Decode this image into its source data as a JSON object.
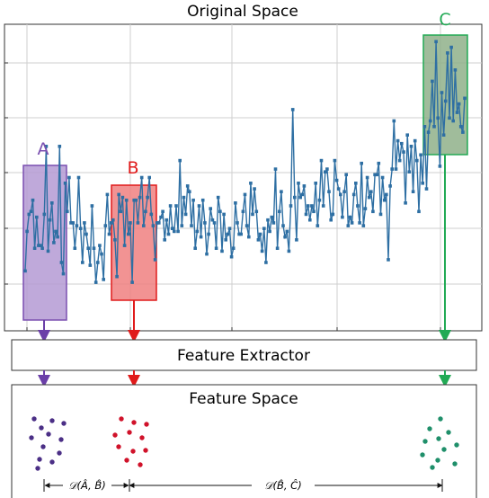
{
  "top_title": "Original Space",
  "labels": {
    "a": "A",
    "b": "B",
    "c": "C"
  },
  "extractor_label": "Feature Extractor",
  "feature_space_title": "Feature Space",
  "distance_ab": "𝒟(Â, B̂)",
  "distance_bc": "𝒟(B̂, Ĉ)",
  "colors": {
    "line": "#2e6fa3",
    "a_fill": "#b49ad4",
    "a_stroke": "#7a4fb0",
    "a_dots": "#4b2f86",
    "b_fill": "#f08080",
    "b_stroke": "#e01b1b",
    "b_dots": "#d0122a",
    "c_fill": "#8fb08a",
    "c_stroke": "#22aa55",
    "c_dots": "#1f8f6a"
  },
  "chart_data": {
    "type": "line",
    "title": "Original Space",
    "xlabel": "",
    "ylabel": "",
    "grid": true,
    "ylim": [
      0,
      10
    ],
    "y": [
      1.7,
      3.1,
      3.7,
      3.8,
      4.2,
      2.5,
      3.6,
      2.6,
      2.6,
      2.5,
      3.7,
      6.1,
      2.4,
      3.5,
      4.1,
      2.7,
      3.1,
      2.9,
      6.1,
      2.0,
      1.6,
      4.8,
      3.8,
      5.0,
      3.4,
      3.4,
      2.5,
      3.3,
      5.0,
      3.2,
      2.0,
      3.4,
      3.0,
      2.5,
      1.9,
      4.0,
      2.5,
      1.3,
      2.0,
      2.6,
      2.3,
      1.4,
      3.3,
      4.4,
      3.0,
      3.4,
      3.5,
      2.8,
      1.5,
      4.4,
      3.8,
      4.3,
      2.6,
      4.2,
      3.0,
      3.4,
      1.3,
      4.2,
      4.2,
      3.4,
      4.3,
      5.0,
      3.3,
      3.8,
      4.3,
      5.0,
      3.7,
      3.3,
      2.1,
      3.4,
      3.4,
      3.6,
      3.8,
      2.8,
      3.5,
      3.0,
      4.0,
      3.2,
      3.1,
      4.0,
      3.1,
      5.6,
      3.3,
      4.3,
      3.7,
      4.7,
      4.5,
      3.3,
      4.2,
      2.5,
      3.1,
      4.0,
      2.9,
      4.2,
      3.4,
      2.3,
      3.0,
      3.9,
      3.5,
      3.4,
      2.5,
      4.3,
      3.8,
      2.4,
      3.7,
      2.8,
      3.0,
      3.2,
      2.2,
      2.5,
      4.1,
      3.4,
      3.0,
      3.0,
      3.8,
      4.4,
      3.3,
      2.9,
      4.8,
      3.7,
      4.6,
      3.8,
      2.8,
      3.0,
      2.4,
      3.2,
      2.0,
      3.5,
      3.1,
      3.6,
      3.4,
      5.3,
      2.5,
      3.8,
      4.5,
      3.3,
      2.9,
      3.1,
      2.4,
      4.0,
      7.4,
      4.3,
      2.8,
      4.8,
      4.3,
      4.4,
      4.7,
      3.7,
      4.0,
      3.5,
      4.0,
      3.8,
      4.8,
      3.3,
      4.2,
      5.6,
      4.0,
      5.2,
      5.3,
      4.5,
      3.5,
      3.7,
      5.6,
      4.9,
      4.6,
      4.4,
      3.6,
      4.5,
      5.1,
      3.3,
      3.6,
      3.4,
      4.4,
      4.8,
      4.0,
      3.4,
      5.5,
      3.3,
      3.9,
      5.0,
      4.3,
      4.5,
      3.8,
      5.1,
      5.1,
      5.5,
      3.7,
      5.0,
      4.2,
      4.4,
      2.1,
      4.7,
      5.3,
      7.0,
      5.3,
      6.3,
      5.6,
      6.2,
      5.9,
      4.1,
      6.5,
      5.2,
      6.1,
      4.5,
      6.3,
      5.6,
      3.8,
      5.8,
      4.8,
      6.8,
      4.6,
      6.6,
      7.0,
      8.4,
      6.8,
      9.8,
      7.1,
      5.4,
      8.0,
      6.5,
      7.7,
      9.4,
      7.1,
      9.6,
      7.0,
      8.8,
      7.3,
      7.6,
      6.8,
      6.6,
      7.8
    ]
  },
  "regions": {
    "a_range": [
      0,
      18
    ],
    "b_range": [
      38,
      56
    ],
    "c_range": [
      180,
      198
    ]
  }
}
